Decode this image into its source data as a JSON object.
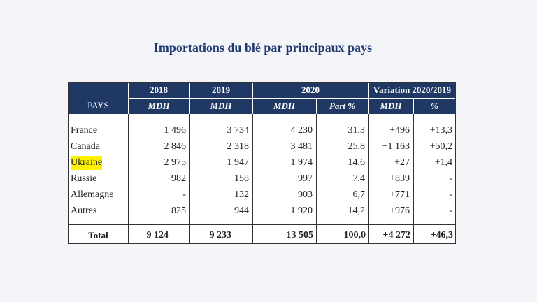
{
  "title": "Importations du blé par principaux pays",
  "table": {
    "header_top": [
      "2018",
      "2019",
      "2020",
      "Variation 2020/2019"
    ],
    "first_header": "PAYS",
    "header_sub": [
      "MDH",
      "MDH",
      "MDH",
      "Part %",
      "MDH",
      "%"
    ],
    "rows": [
      [
        "France",
        "1 496",
        "3 734",
        "4 230",
        "31,3",
        "+496",
        "+13,3"
      ],
      [
        "Canada",
        "2 846",
        "2 318",
        "3 481",
        "25,8",
        "+1 163",
        "+50,2"
      ],
      [
        "Ukraine",
        "2 975",
        "1 947",
        "1 974",
        "14,6",
        "+27",
        "+1,4"
      ],
      [
        "Russie",
        "982",
        "158",
        "997",
        "7,4",
        "+839",
        "-"
      ],
      [
        "Allemagne",
        "-",
        "132",
        "903",
        "6,7",
        "+771",
        "-"
      ],
      [
        "Autres",
        "825",
        "944",
        "1 920",
        "14,2",
        "+976",
        "-"
      ]
    ],
    "total": [
      "Total",
      "9 124",
      "9 233",
      "13 505",
      "100,0",
      "+4 272",
      "+46,3"
    ]
  }
}
